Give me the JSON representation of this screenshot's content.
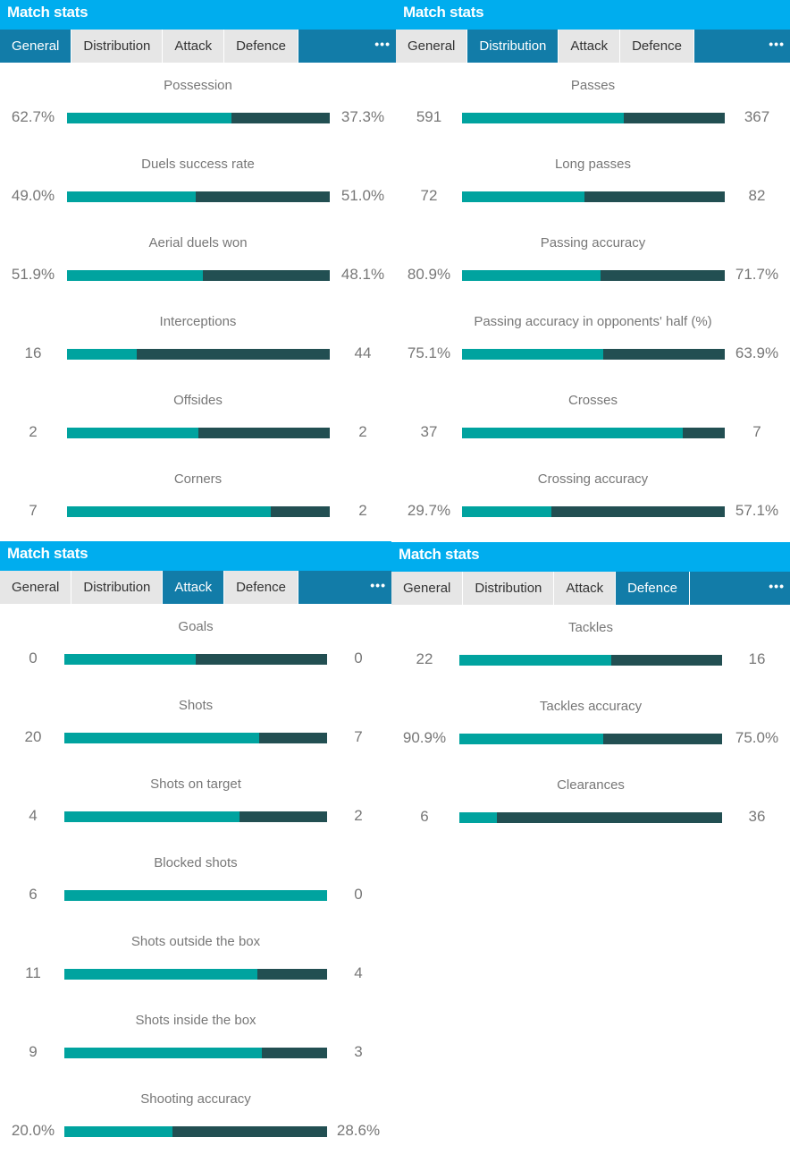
{
  "colors": {
    "header": "#00adee",
    "tabbar": "#127ca8",
    "home": "#00a39f",
    "away": "#224f52"
  },
  "panels": [
    {
      "title": "Match stats",
      "tabs": [
        "General",
        "Distribution",
        "Attack",
        "Defence"
      ],
      "active": 0,
      "more_icon": "ellipsis-icon",
      "more": "•••",
      "rows": [
        [
          "Possession",
          "62.7%",
          "37.3%",
          62.7,
          37.3
        ],
        [
          "Duels success rate",
          "49.0%",
          "51.0%",
          49,
          51
        ],
        [
          "Aerial duels won",
          "51.9%",
          "48.1%",
          51.9,
          48.1
        ],
        [
          "Interceptions",
          "16",
          "44",
          16,
          44
        ],
        [
          "Offsides",
          "2",
          "2",
          2,
          2
        ],
        [
          "Corners",
          "7",
          "2",
          7,
          2
        ]
      ]
    },
    {
      "title": "Match stats",
      "tabs": [
        "General",
        "Distribution",
        "Attack",
        "Defence"
      ],
      "active": 1,
      "more_icon": "ellipsis-icon",
      "more": "•••",
      "rows": [
        [
          "Passes",
          "591",
          "367",
          591,
          367
        ],
        [
          "Long passes",
          "72",
          "82",
          72,
          82
        ],
        [
          "Passing accuracy",
          "80.9%",
          "71.7%",
          80.9,
          71.7
        ],
        [
          "Passing accuracy in opponents' half (%)",
          "75.1%",
          "63.9%",
          75.1,
          63.9
        ],
        [
          "Crosses",
          "37",
          "7",
          37,
          7
        ],
        [
          "Crossing accuracy",
          "29.7%",
          "57.1%",
          29.7,
          57.1
        ]
      ]
    },
    {
      "title": "Match stats",
      "tabs": [
        "General",
        "Distribution",
        "Attack",
        "Defence"
      ],
      "active": 2,
      "more_icon": "ellipsis-icon",
      "more": "•••",
      "rows": [
        [
          "Goals",
          "0",
          "0",
          0,
          0
        ],
        [
          "Shots",
          "20",
          "7",
          20,
          7
        ],
        [
          "Shots on target",
          "4",
          "2",
          4,
          2
        ],
        [
          "Blocked shots",
          "6",
          "0",
          6,
          0
        ],
        [
          "Shots outside the box",
          "11",
          "4",
          11,
          4
        ],
        [
          "Shots inside the box",
          "9",
          "3",
          9,
          3
        ],
        [
          "Shooting accuracy",
          "20.0%",
          "28.6%",
          20,
          28.6
        ]
      ]
    },
    {
      "title": "Match stats",
      "tabs": [
        "General",
        "Distribution",
        "Attack",
        "Defence"
      ],
      "active": 3,
      "more_icon": "ellipsis-icon",
      "more": "•••",
      "rows": [
        [
          "Tackles",
          "22",
          "16",
          22,
          16
        ],
        [
          "Tackles accuracy",
          "90.9%",
          "75.0%",
          90.9,
          75
        ],
        [
          "Clearances",
          "6",
          "36",
          6,
          36
        ]
      ]
    }
  ]
}
